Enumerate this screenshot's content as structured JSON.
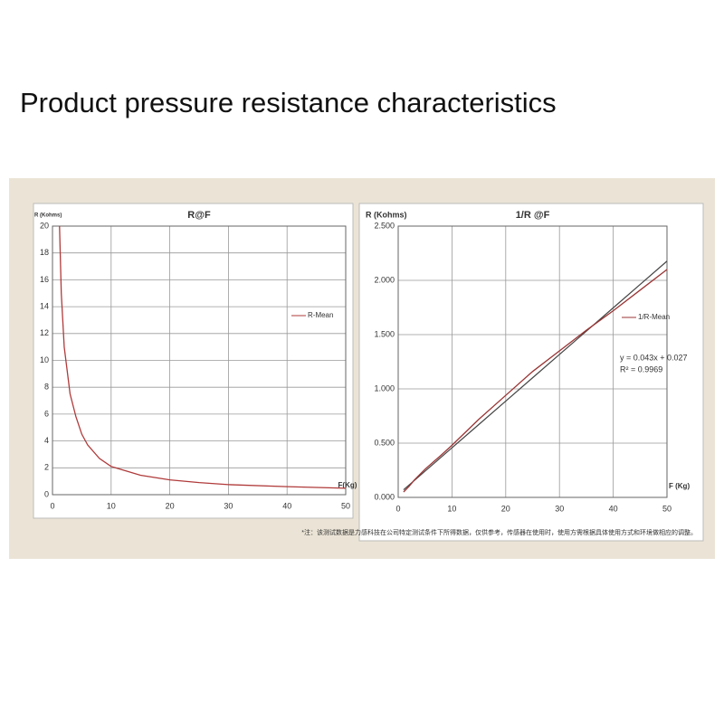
{
  "header": {
    "title": "Product pressure resistance characteristics"
  },
  "footnote": "*注：该测试数据是力感科技在公司特定测试条件下所得数据，仅供参考，传感器在使用时，使用方需根据具体使用方式和环境做相应的调整。",
  "chart_data": [
    {
      "type": "line",
      "title": "R@F",
      "y_label": "R (Kohms)",
      "x_label": "F(Kg)",
      "x": [
        1.2,
        1.5,
        2,
        3,
        4,
        5,
        6,
        8,
        10,
        15,
        20,
        25,
        30,
        40,
        50
      ],
      "series": [
        {
          "name": "R-Mean",
          "color": "#b03a3a",
          "values": [
            20,
            15,
            11,
            7.5,
            5.8,
            4.5,
            3.7,
            2.7,
            2.1,
            1.45,
            1.1,
            0.9,
            0.75,
            0.6,
            0.48
          ]
        }
      ],
      "xlim": [
        0,
        50
      ],
      "xticks": [
        0,
        10,
        20,
        30,
        40,
        50
      ],
      "ylim": [
        0,
        20
      ],
      "yticks": [
        0,
        2,
        4,
        6,
        8,
        10,
        12,
        14,
        16,
        18,
        20
      ],
      "grid": true
    },
    {
      "type": "line",
      "title": "1/R @F",
      "y_label": "R (Kohms)",
      "x_label": "F (Kg)",
      "x": [
        1,
        2,
        3,
        5,
        8,
        10,
        15,
        20,
        25,
        30,
        35,
        40,
        45,
        50
      ],
      "series": [
        {
          "name": "1/R-Mean",
          "color": "#9a3434",
          "values": [
            0.05,
            0.1,
            0.16,
            0.26,
            0.39,
            0.48,
            0.72,
            0.94,
            1.16,
            1.35,
            1.54,
            1.72,
            1.91,
            2.1
          ]
        }
      ],
      "trendline": {
        "color": "#444444",
        "values": [
          0.07,
          0.113,
          0.156,
          0.242,
          0.371,
          0.457,
          0.672,
          0.887,
          1.102,
          1.317,
          1.532,
          1.747,
          1.962,
          2.177
        ]
      },
      "annotations": [
        "y = 0.043x + 0.027",
        "R² = 0.9969"
      ],
      "xlim": [
        0,
        50
      ],
      "xticks": [
        0,
        10,
        20,
        30,
        40,
        50
      ],
      "ylim": [
        0,
        2.5
      ],
      "yticks": [
        {
          "value": 0,
          "label": "0.000"
        },
        {
          "value": 0.5,
          "label": "0.500"
        },
        {
          "value": 1,
          "label": "1.000"
        },
        {
          "value": 1.5,
          "label": "1.500"
        },
        {
          "value": 2,
          "label": "2.000"
        },
        {
          "value": 2.5,
          "label": "2.500"
        }
      ],
      "grid": true
    }
  ]
}
